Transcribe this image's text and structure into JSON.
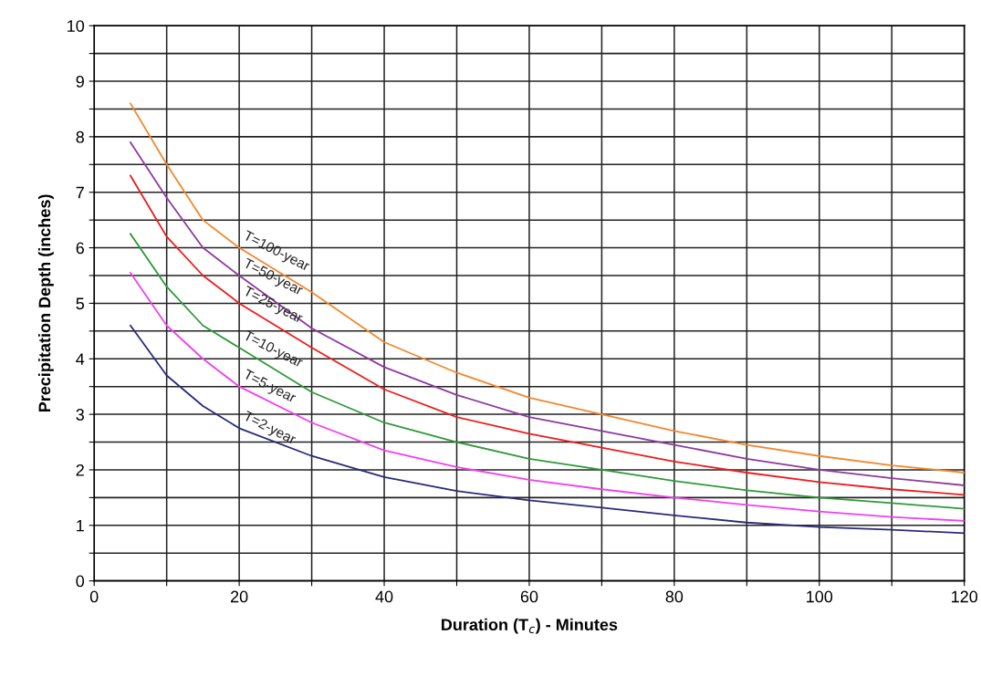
{
  "chart_data": {
    "type": "line",
    "xlabel": "Duration (T$_{c}$) - Minutes",
    "ylabel": "Precipitation Depth (inches)",
    "x": [
      5,
      10,
      15,
      20,
      30,
      40,
      50,
      60,
      70,
      80,
      90,
      100,
      110,
      120
    ],
    "series": [
      {
        "name": "T=100-year",
        "color": "#f4872d",
        "values": [
          8.6,
          7.5,
          6.5,
          6.0,
          5.2,
          4.3,
          3.75,
          3.3,
          3.0,
          2.7,
          2.45,
          2.25,
          2.08,
          1.95
        ]
      },
      {
        "name": "T=50-year",
        "color": "#8e3a9e",
        "values": [
          7.9,
          6.9,
          6.0,
          5.5,
          4.55,
          3.85,
          3.35,
          2.95,
          2.7,
          2.45,
          2.2,
          2.0,
          1.85,
          1.72
        ]
      },
      {
        "name": "T=25-year",
        "color": "#ee1c1c",
        "values": [
          7.3,
          6.2,
          5.5,
          5.0,
          4.2,
          3.45,
          2.95,
          2.65,
          2.4,
          2.15,
          1.95,
          1.78,
          1.65,
          1.55
        ]
      },
      {
        "name": "T=10-year",
        "color": "#2e9a3a",
        "values": [
          6.25,
          5.3,
          4.6,
          4.2,
          3.4,
          2.85,
          2.5,
          2.2,
          2.0,
          1.8,
          1.63,
          1.5,
          1.4,
          1.3
        ]
      },
      {
        "name": "T=5-year",
        "color": "#f040f0",
        "values": [
          5.55,
          4.6,
          4.0,
          3.5,
          2.85,
          2.35,
          2.05,
          1.82,
          1.65,
          1.5,
          1.37,
          1.25,
          1.15,
          1.08
        ]
      },
      {
        "name": "T=2-year",
        "color": "#2a2a7a",
        "values": [
          4.6,
          3.7,
          3.15,
          2.75,
          2.25,
          1.87,
          1.62,
          1.45,
          1.32,
          1.18,
          1.05,
          0.97,
          0.92,
          0.86
        ]
      }
    ],
    "xlim": [
      0,
      120
    ],
    "ylim": [
      0,
      10
    ],
    "xticks": [
      0,
      {
        "value": 10,
        "label": null
      },
      20,
      {
        "value": 30,
        "label": null
      },
      40,
      {
        "value": 50,
        "label": null
      },
      60,
      {
        "value": 70,
        "label": null
      },
      80,
      {
        "value": 90,
        "label": null
      },
      100,
      {
        "value": 110,
        "label": null
      },
      120
    ],
    "yticks": [
      0,
      {
        "value": 0.5,
        "label": null
      },
      1,
      {
        "value": 1.5,
        "label": null
      },
      2,
      {
        "value": 2.5,
        "label": null
      },
      3,
      {
        "value": 3.5,
        "label": null
      },
      4,
      {
        "value": 4.5,
        "label": null
      },
      5,
      {
        "value": 5.5,
        "label": null
      },
      6,
      {
        "value": 6.5,
        "label": null
      },
      7,
      {
        "value": 7.5,
        "label": null
      },
      8,
      {
        "value": 8.5,
        "label": null
      },
      9,
      {
        "value": 9.5,
        "label": null
      },
      10
    ],
    "grid": true,
    "marker": "none",
    "line_style": "solid"
  }
}
